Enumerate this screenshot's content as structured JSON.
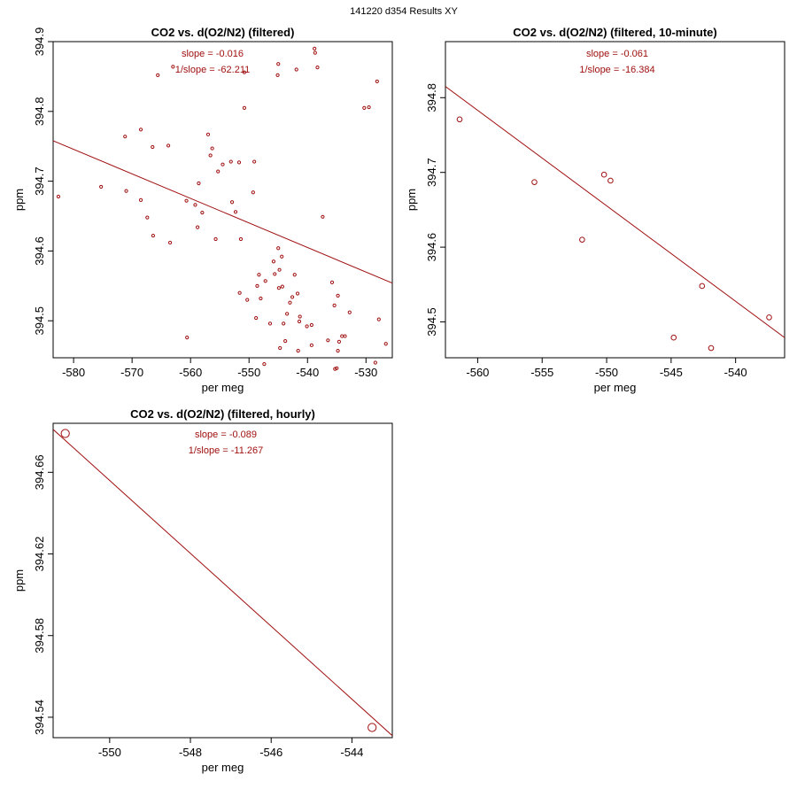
{
  "suptitle": "141220   d354   Results XY",
  "colors": {
    "series": "#a01010",
    "axis": "#000000"
  },
  "chart_data": [
    {
      "type": "scatter",
      "title": "CO2 vs. d(O2/N2) (filtered)",
      "xlabel": "per meg",
      "ylabel": "ppm",
      "xlim": [
        -583.5,
        -525.5
      ],
      "ylim": [
        394.447,
        394.9
      ],
      "xticks": [
        -580,
        -570,
        -560,
        -550,
        -540,
        -530
      ],
      "yticks": [
        394.5,
        394.6,
        394.7,
        394.8,
        394.9
      ],
      "yticklabels": [
        "394.5",
        "394.6",
        "394.7",
        "394.8",
        "394.9"
      ],
      "annotations": [
        "slope = -0.016",
        "1/slope = -62.211"
      ],
      "marker": "small-circle",
      "fit_line": {
        "x": [
          -583.5,
          -525.5
        ],
        "y": [
          394.758,
          394.554
        ]
      },
      "points": {
        "x": [
          -582.6,
          -575.3,
          -571.2,
          -571,
          -568.5,
          -568.5,
          -567.4,
          -566.5,
          -566.4,
          -565.6,
          -563.8,
          -563.5,
          -563,
          -560.7,
          -560.6,
          -559.2,
          -558.8,
          -558.6,
          -558,
          -557,
          -556.6,
          -556.3,
          -555.7,
          -555.3,
          -554.5,
          -553.1,
          -552.9,
          -552.3,
          -551.7,
          -551.6,
          -551.4,
          -550.8,
          -550.8,
          -550.3,
          -549.3,
          -549.1,
          -548.8,
          -548.6,
          -548.3,
          -548,
          -547.4,
          -547.2,
          -546.4,
          -545.8,
          -545.6,
          -545.1,
          -545,
          -545,
          -544.9,
          -544.8,
          -544.7,
          -544.4,
          -544.3,
          -544.1,
          -543.8,
          -543.5,
          -543,
          -542.6,
          -542.2,
          -541.9,
          -541.7,
          -541.6,
          -541.4,
          -541.3,
          -540.1,
          -539.3,
          -539.3,
          -538.8,
          -538.7,
          -538.3,
          -537.4,
          -536.5,
          -535.8,
          -535.4,
          -535.3,
          -535,
          -534.8,
          -534.8,
          -534.6,
          -534.1,
          -533.6,
          -532.8,
          -530.3,
          -529.5,
          -528.4,
          -528.1,
          -527.8,
          -526.6
        ],
        "y": [
          394.678,
          394.692,
          394.764,
          394.686,
          394.774,
          394.673,
          394.648,
          394.749,
          394.622,
          394.852,
          394.751,
          394.612,
          394.864,
          394.672,
          394.476,
          394.666,
          394.634,
          394.697,
          394.655,
          394.767,
          394.737,
          394.747,
          394.617,
          394.714,
          394.724,
          394.728,
          394.67,
          394.656,
          394.727,
          394.54,
          394.617,
          394.856,
          394.805,
          394.53,
          394.684,
          394.728,
          394.504,
          394.55,
          394.566,
          394.532,
          394.438,
          394.557,
          394.496,
          394.585,
          394.567,
          394.852,
          394.868,
          394.604,
          394.547,
          394.573,
          394.461,
          394.592,
          394.549,
          394.496,
          394.471,
          394.51,
          394.526,
          394.534,
          394.566,
          394.86,
          394.539,
          394.457,
          394.499,
          394.506,
          394.492,
          394.465,
          394.494,
          394.89,
          394.884,
          394.863,
          394.649,
          394.472,
          394.555,
          394.522,
          394.431,
          394.432,
          394.457,
          394.536,
          394.47,
          394.478,
          394.478,
          394.512,
          394.805,
          394.806,
          394.44,
          394.843,
          394.502,
          394.467
        ]
      }
    },
    {
      "type": "scatter",
      "title": "CO2 vs. d(O2/N2) (filtered, 10-minute)",
      "xlabel": "per meg",
      "ylabel": "ppm",
      "xlim": [
        -562.5,
        -536.2
      ],
      "ylim": [
        394.452,
        394.875
      ],
      "xticks": [
        -560,
        -555,
        -550,
        -545,
        -540
      ],
      "yticks": [
        394.5,
        394.6,
        394.7,
        394.8
      ],
      "yticklabels": [
        "394.5",
        "394.6",
        "394.7",
        "394.8"
      ],
      "annotations": [
        "slope = -0.061",
        "1/slope = -16.384"
      ],
      "marker": "circle",
      "fit_line": {
        "x": [
          -562.5,
          -536.2
        ],
        "y": [
          394.815,
          394.479
        ]
      },
      "points": {
        "x": [
          -561.4,
          -555.6,
          -551.9,
          -550.2,
          -549.7,
          -544.8,
          -542.6,
          -541.9,
          -537.4
        ],
        "y": [
          394.771,
          394.687,
          394.61,
          394.697,
          394.689,
          394.479,
          394.548,
          394.465,
          394.506
        ]
      }
    },
    {
      "type": "scatter",
      "title": "CO2 vs. d(O2/N2) (filtered, hourly)",
      "xlabel": "per meg",
      "ylabel": "ppm",
      "xlim": [
        -551.4,
        -543.0
      ],
      "ylim": [
        394.53,
        394.684
      ],
      "xticks": [
        -550,
        -548,
        -546,
        -544
      ],
      "yticks": [
        394.54,
        394.58,
        394.62,
        394.66
      ],
      "yticklabels": [
        "394.54",
        "394.58",
        "394.62",
        "394.66"
      ],
      "annotations": [
        "slope = -0.089",
        "1/slope = -11.267"
      ],
      "marker": "large-circle",
      "fit_line": {
        "x": [
          -551.4,
          -543.0
        ],
        "y": [
          394.681,
          394.531
        ]
      },
      "points": {
        "x": [
          -551.1,
          -543.5
        ],
        "y": [
          394.679,
          394.535
        ]
      }
    }
  ]
}
